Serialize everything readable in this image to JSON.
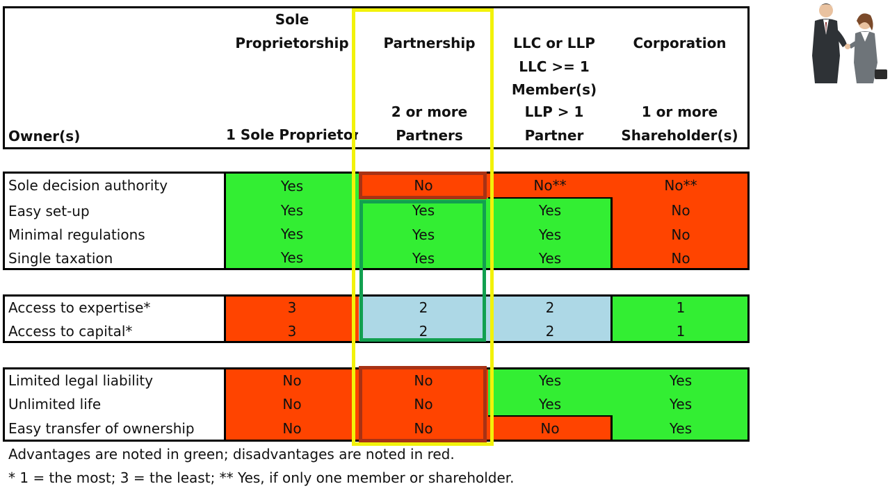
{
  "header": {
    "owner_label": "Owner(s)",
    "columns": [
      {
        "title_lines": [
          "Sole",
          "Proprietorship"
        ],
        "owner_line": "1 Sole Proprietor"
      },
      {
        "title_lines": [
          "Partnership"
        ],
        "owner_lines": [
          "2 or more",
          "Partners"
        ]
      },
      {
        "title_lines": [
          "LLC or LLP",
          "LLC >= 1",
          "Member(s)"
        ],
        "owner_lines": [
          "LLP > 1",
          "Partner"
        ]
      },
      {
        "title_lines": [
          "Corporation"
        ],
        "owner_lines": [
          "1 or more",
          "Shareholder(s)"
        ]
      }
    ]
  },
  "rows": [
    {
      "label": "Sole decision authority",
      "values": [
        "Yes",
        "No",
        "No**",
        "No**"
      ]
    },
    {
      "label": "Easy set-up",
      "values": [
        "Yes",
        "Yes",
        "Yes",
        "No"
      ]
    },
    {
      "label": "Minimal regulations",
      "values": [
        "Yes",
        "Yes",
        "Yes",
        "No"
      ]
    },
    {
      "label": "Single taxation",
      "values": [
        "Yes",
        "Yes",
        "Yes",
        "No"
      ]
    },
    {
      "label": "Access to expertise*",
      "values": [
        "3",
        "2",
        "2",
        "1"
      ]
    },
    {
      "label": "Access to capital*",
      "values": [
        "3",
        "2",
        "2",
        "1"
      ]
    },
    {
      "label": "Limited legal liability",
      "values": [
        "No",
        "No",
        "Yes",
        "Yes"
      ]
    },
    {
      "label": "Unlimited life",
      "values": [
        "No",
        "No",
        "Yes",
        "Yes"
      ]
    },
    {
      "label": "Easy transfer of ownership",
      "values": [
        "No",
        "No",
        "No",
        "Yes"
      ]
    }
  ],
  "footnotes": {
    "legend": "Advantages are noted in green; disadvantages are noted in red.",
    "key": "* 1 = the most; 3 = the least;  ** Yes, if only one member or shareholder."
  },
  "colors": {
    "advantage_green": "#33ee33",
    "disadvantage_red": "#ff4400",
    "neutral_blue": "#add8e6",
    "highlight_yellow": "#f2f20a",
    "outline_dark_red": "#a83214",
    "outline_green": "#12a050"
  },
  "image": {
    "icon": "business-people-handshake-illustration"
  }
}
